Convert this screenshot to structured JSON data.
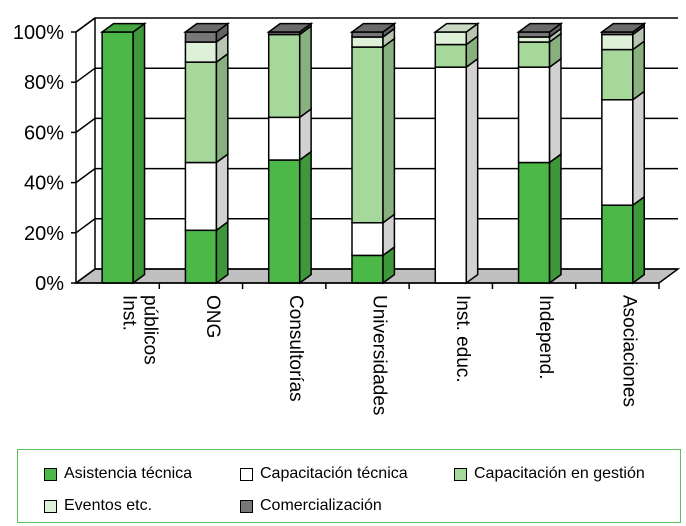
{
  "chart_data": {
    "type": "bar",
    "stacked": true,
    "categories": [
      "Inst.\npúblicos",
      "ONG",
      "Consultorías",
      "Universidades",
      "Inst. educ.",
      "Independ.",
      "Asociaciones"
    ],
    "series": [
      {
        "name": "Asistencia técnica",
        "color": "#4cb848",
        "values": [
          100,
          21,
          49,
          11,
          0,
          48,
          31
        ]
      },
      {
        "name": "Capacitación técnica",
        "color": "#ffffff",
        "values": [
          0,
          27,
          17,
          13,
          86,
          38,
          42
        ]
      },
      {
        "name": "Capacitación en gestión",
        "color": "#a7d89b",
        "values": [
          0,
          40,
          33,
          70,
          9,
          10,
          20
        ]
      },
      {
        "name": "Eventos etc.",
        "color": "#dff0d8",
        "values": [
          0,
          8,
          0,
          4,
          5,
          2,
          6
        ]
      },
      {
        "name": "Comercialización",
        "color": "#777777",
        "values": [
          0,
          4,
          1,
          2,
          0,
          2,
          1
        ]
      }
    ],
    "ylim": [
      0,
      100
    ],
    "yticks": [
      "0%",
      "20%",
      "40%",
      "60%",
      "80%",
      "100%"
    ],
    "grid": true,
    "legend_position": "bottom"
  }
}
